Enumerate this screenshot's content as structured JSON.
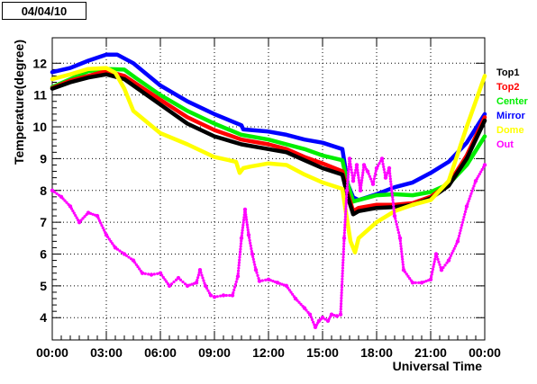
{
  "stamp": "04/04/10",
  "chart_data": {
    "type": "line",
    "xlabel": "Universal Time",
    "ylabel": "Temperature(degree)",
    "xlim": [
      0,
      24
    ],
    "ylim": [
      3.3,
      12.8
    ],
    "grid": true,
    "legend_position": "right",
    "x_ticks": [
      {
        "x": 0,
        "label": "00:00"
      },
      {
        "x": 3,
        "label": "03:00"
      },
      {
        "x": 6,
        "label": "06:00"
      },
      {
        "x": 9,
        "label": "09:00"
      },
      {
        "x": 12,
        "label": "12:00"
      },
      {
        "x": 15,
        "label": "15:00"
      },
      {
        "x": 18,
        "label": "18:00"
      },
      {
        "x": 21,
        "label": "21:00"
      },
      {
        "x": 24,
        "label": "00:00"
      }
    ],
    "y_ticks": [
      {
        "y": 4,
        "label": "4"
      },
      {
        "y": 5,
        "label": "5"
      },
      {
        "y": 6,
        "label": "6"
      },
      {
        "y": 7,
        "label": "7"
      },
      {
        "y": 8,
        "label": "8"
      },
      {
        "y": 9,
        "label": "9"
      },
      {
        "y": 10,
        "label": "10"
      },
      {
        "y": 11,
        "label": "11"
      },
      {
        "y": 12,
        "label": "12"
      }
    ],
    "series": [
      {
        "name": "Mirror",
        "color": "#0000ff",
        "style": "line",
        "x": [
          0,
          1,
          2,
          3,
          3.6,
          4.5,
          6,
          7.5,
          9,
          10.5,
          10.6,
          12,
          13,
          14,
          15,
          16.1,
          16.4,
          16.7,
          17,
          18,
          19,
          20,
          21,
          22,
          23,
          24
        ],
        "y": [
          11.72,
          11.85,
          12.08,
          12.27,
          12.27,
          12.0,
          11.3,
          10.8,
          10.4,
          10.05,
          9.92,
          9.85,
          9.75,
          9.6,
          9.5,
          9.3,
          8.2,
          7.78,
          7.7,
          7.88,
          8.1,
          8.25,
          8.55,
          8.9,
          9.5,
          10.4
        ]
      },
      {
        "name": "Center",
        "color": "#00ee00",
        "style": "line",
        "x": [
          0,
          1,
          2,
          3,
          4,
          4.6,
          6,
          7.5,
          9,
          10.5,
          12,
          13,
          14,
          15,
          16.1,
          16.4,
          16.7,
          17,
          18,
          19,
          20,
          21,
          22,
          23,
          24
        ],
        "y": [
          11.25,
          11.5,
          11.75,
          11.82,
          11.8,
          11.55,
          11.0,
          10.5,
          10.1,
          9.75,
          9.6,
          9.45,
          9.3,
          9.1,
          8.95,
          8.2,
          7.65,
          7.7,
          7.85,
          7.88,
          7.85,
          7.95,
          8.2,
          8.8,
          9.7
        ]
      },
      {
        "name": "Top2",
        "color": "#ff0000",
        "style": "line",
        "x": [
          0,
          1,
          2,
          3,
          4,
          6,
          7.5,
          9,
          10.5,
          12,
          13,
          14,
          15,
          16.1,
          16.4,
          16.7,
          17,
          18,
          19,
          20,
          21,
          22,
          23,
          24
        ],
        "y": [
          11.22,
          11.45,
          11.6,
          11.75,
          11.6,
          10.85,
          10.3,
          9.9,
          9.6,
          9.45,
          9.3,
          9.05,
          8.85,
          8.6,
          7.9,
          7.35,
          7.45,
          7.55,
          7.55,
          7.6,
          7.8,
          8.2,
          9.1,
          10.3
        ]
      },
      {
        "name": "Top1",
        "color": "#000000",
        "style": "line",
        "x": [
          0,
          1,
          2,
          3,
          4,
          6,
          7.5,
          9,
          10.5,
          12,
          13,
          14,
          15,
          16.1,
          16.4,
          16.7,
          17,
          18,
          19,
          20,
          21,
          22,
          23,
          24
        ],
        "y": [
          11.2,
          11.4,
          11.55,
          11.65,
          11.5,
          10.7,
          10.1,
          9.7,
          9.45,
          9.3,
          9.2,
          8.95,
          8.7,
          8.5,
          7.8,
          7.25,
          7.35,
          7.45,
          7.48,
          7.55,
          7.75,
          8.15,
          9.0,
          10.2
        ]
      },
      {
        "name": "Dome",
        "color": "#ffff00",
        "style": "line",
        "x": [
          0,
          1,
          2,
          3,
          3.5,
          4,
          4.5,
          6,
          7.5,
          9,
          10.2,
          10.4,
          10.6,
          11,
          12,
          13,
          14,
          15,
          16.1,
          16.3,
          16.55,
          16.8,
          17,
          18,
          19,
          20,
          21,
          22,
          23,
          24
        ],
        "y": [
          11.5,
          11.65,
          11.82,
          11.85,
          11.7,
          11.2,
          10.5,
          9.8,
          9.45,
          9.05,
          8.9,
          8.55,
          8.7,
          8.75,
          8.85,
          8.8,
          8.5,
          8.25,
          8.05,
          7.3,
          6.4,
          6.05,
          6.5,
          7.0,
          7.35,
          7.55,
          7.7,
          8.3,
          10.0,
          11.6
        ]
      },
      {
        "name": "Out",
        "color": "#ff00ff",
        "style": "markers",
        "x": [
          0,
          0.5,
          1.0,
          1.5,
          2.0,
          2.5,
          3.0,
          3.5,
          4.0,
          4.5,
          5.0,
          5.5,
          6.0,
          6.5,
          7.0,
          7.5,
          8.0,
          8.2,
          8.5,
          8.8,
          9.0,
          9.5,
          10.0,
          10.3,
          10.5,
          10.7,
          10.9,
          11.1,
          11.3,
          11.5,
          12.0,
          12.5,
          13.0,
          13.5,
          14.0,
          14.3,
          14.6,
          14.8,
          15.0,
          15.3,
          15.5,
          15.8,
          16.0,
          16.2,
          16.35,
          16.5,
          16.7,
          16.9,
          17.1,
          17.3,
          17.5,
          17.8,
          18.0,
          18.3,
          18.5,
          18.7,
          19.0,
          19.3,
          19.5,
          20.0,
          20.5,
          21.0,
          21.3,
          21.6,
          22.0,
          22.5,
          23.0,
          23.5,
          24.0
        ],
        "y": [
          8.0,
          7.8,
          7.5,
          7.0,
          7.3,
          7.2,
          6.6,
          6.2,
          6.0,
          5.8,
          5.4,
          5.35,
          5.4,
          5.0,
          5.25,
          5.0,
          5.1,
          5.5,
          5.0,
          4.7,
          4.65,
          4.7,
          4.7,
          5.3,
          6.5,
          7.4,
          6.6,
          6.0,
          5.5,
          5.15,
          5.2,
          5.1,
          5.0,
          4.6,
          4.3,
          4.1,
          3.7,
          3.9,
          4.0,
          3.9,
          4.1,
          4.05,
          4.1,
          6.5,
          8.0,
          9.0,
          8.3,
          8.8,
          8.0,
          8.8,
          8.6,
          8.2,
          8.7,
          9.0,
          8.4,
          8.7,
          7.2,
          6.5,
          5.5,
          5.1,
          5.1,
          5.2,
          6.0,
          5.5,
          5.8,
          6.4,
          7.5,
          8.3,
          8.8
        ]
      }
    ]
  }
}
